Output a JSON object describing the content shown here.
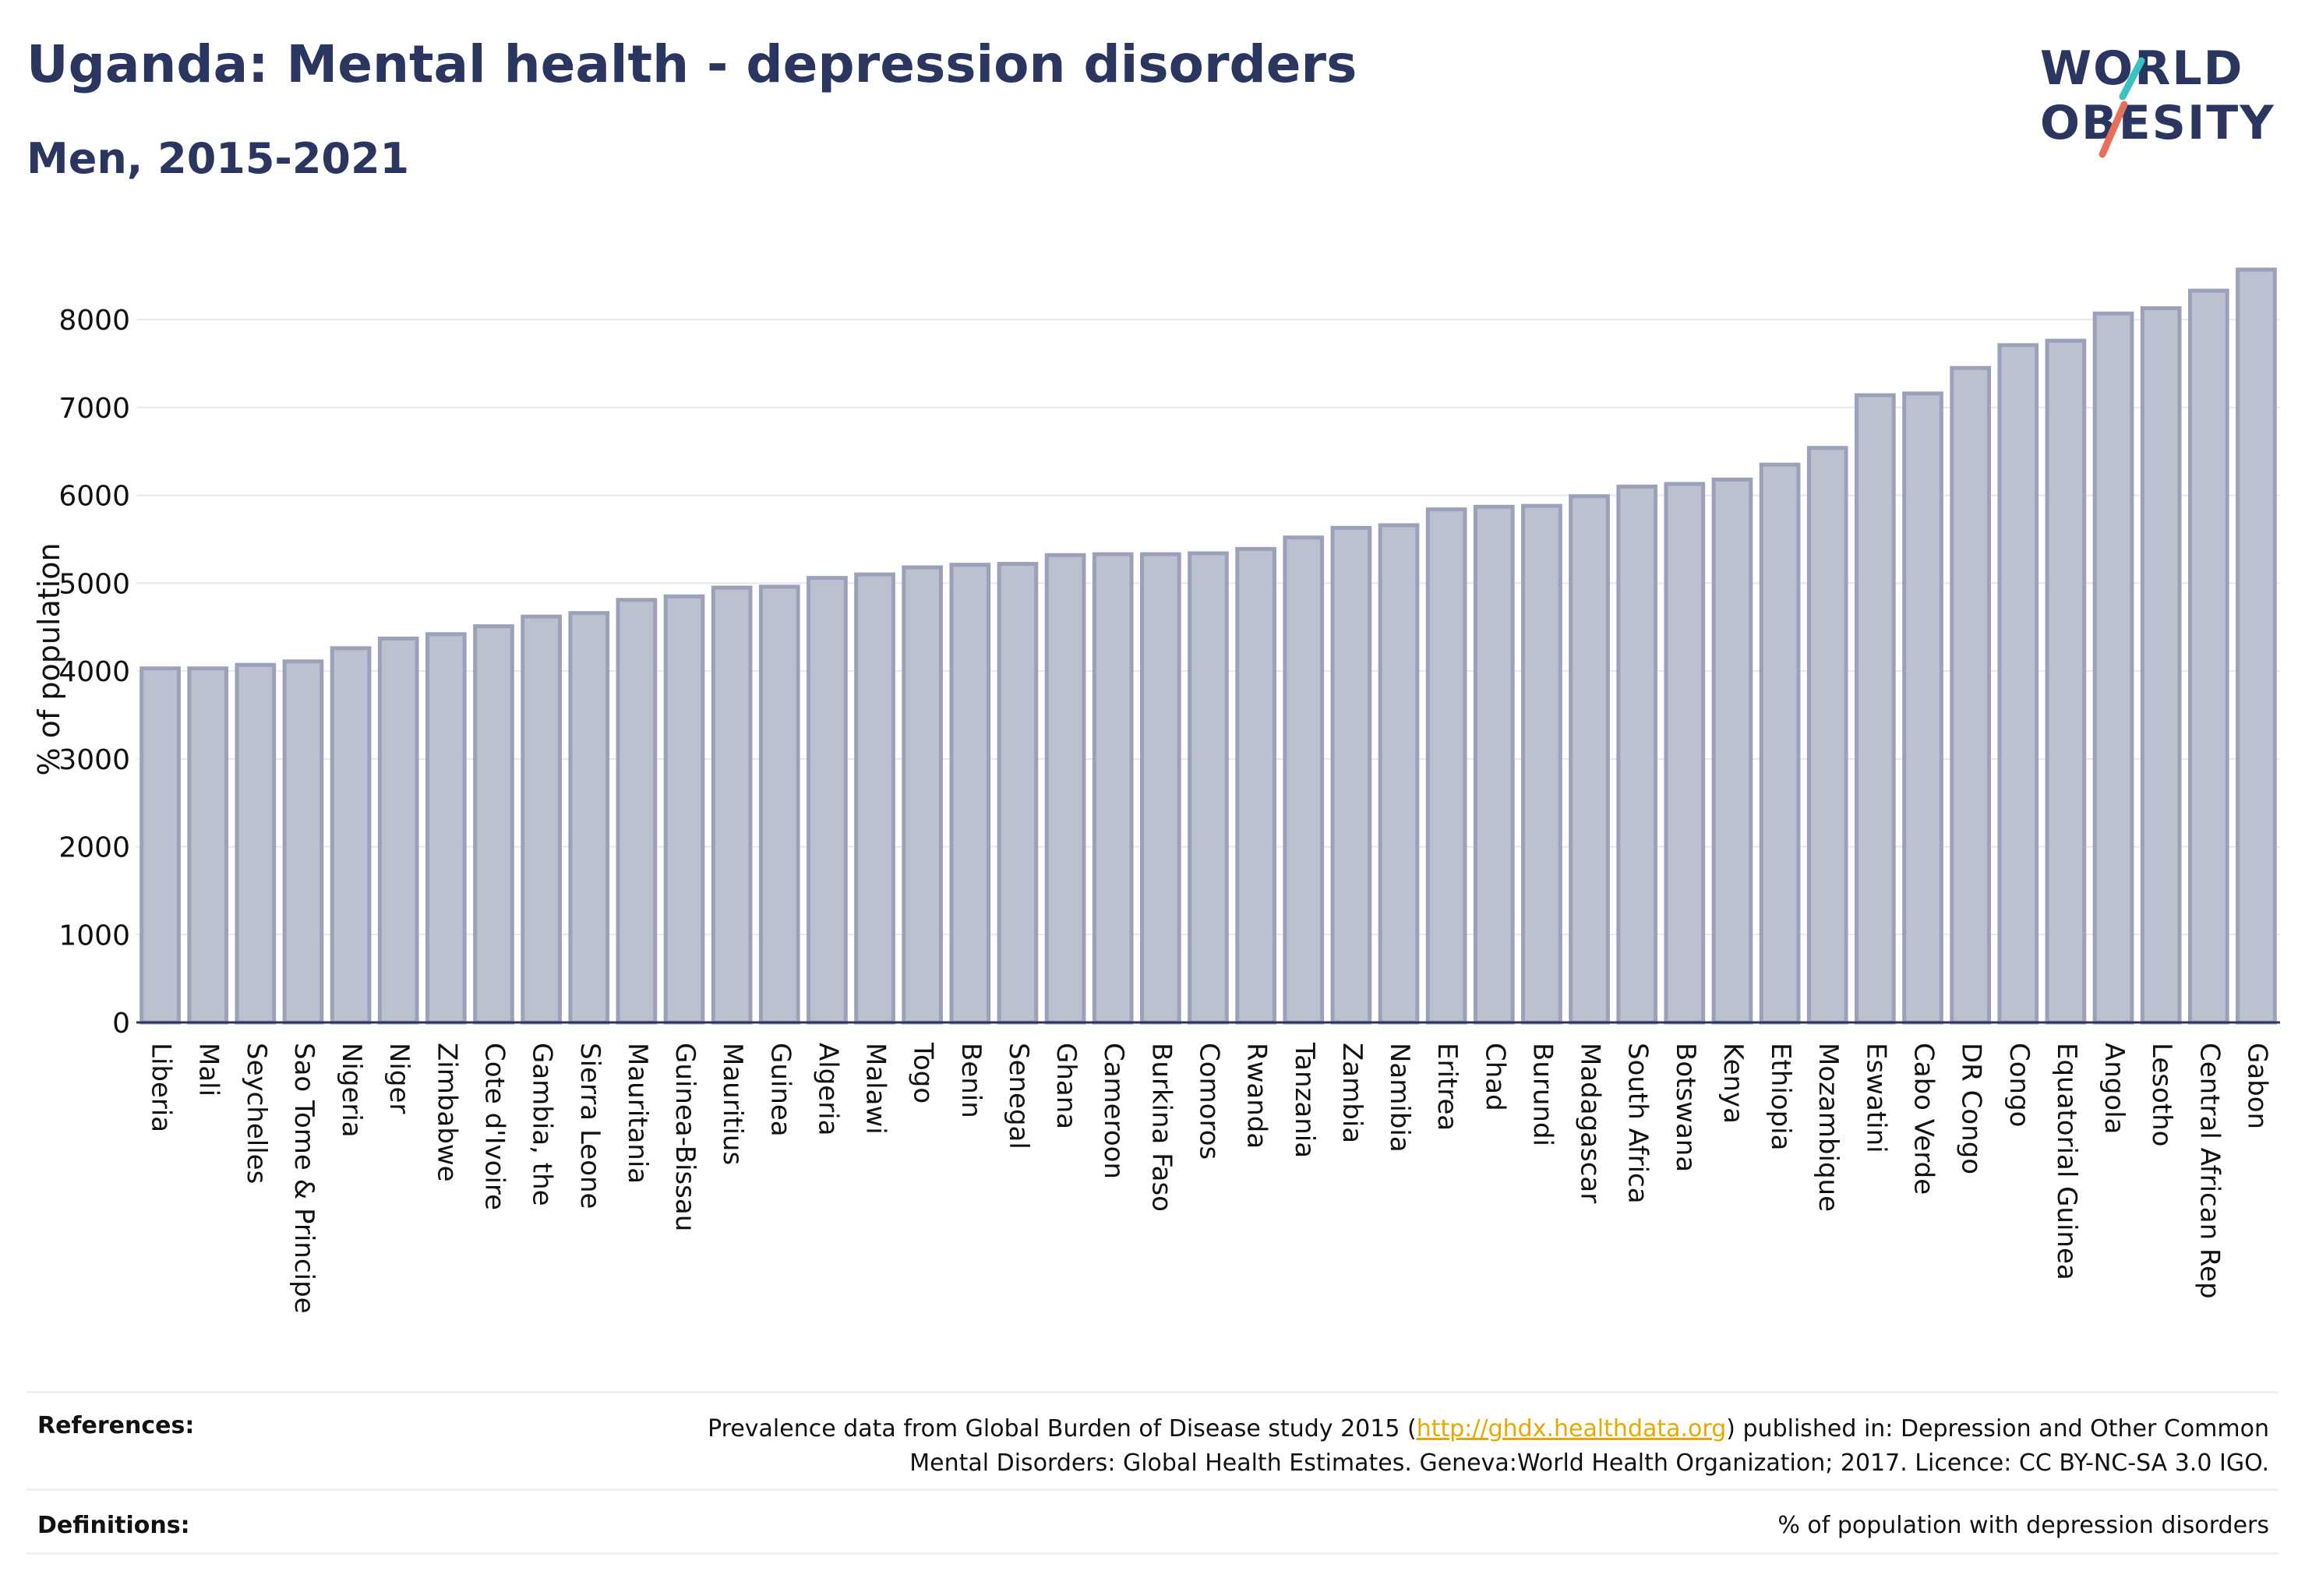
{
  "header": {
    "title": "Uganda: Mental health - depression disorders",
    "subtitle": "Men, 2015-2021"
  },
  "logo": {
    "line1": "WORLD",
    "line2": "OBESITY",
    "accent_teal": "#3cc0c0",
    "accent_coral": "#e8705a",
    "text_color": "#2a3560"
  },
  "footer": {
    "references_label": "References:",
    "references_text_before": "Prevalence data from Global Burden of Disease study 2015 (",
    "references_link": "http://ghdx.healthdata.org",
    "references_text_after": ") published in: Depression and Other Common",
    "references_text_line2": "Mental Disorders: Global Health Estimates. Geneva:World Health Organization; 2017. Licence: CC BY-NC-SA 3.0 IGO.",
    "definitions_label": "Definitions:",
    "definitions_text": "% of population with depression disorders"
  },
  "chart_data": {
    "type": "bar",
    "title": "Uganda: Mental health - depression disorders",
    "subtitle": "Men, 2015-2021",
    "ylabel": "% of population",
    "xlabel": "",
    "ylim": [
      0,
      8800
    ],
    "yticks": [
      0,
      1000,
      2000,
      3000,
      4000,
      5000,
      6000,
      7000,
      8000
    ],
    "grid": true,
    "bar_color": "#bcc1cf",
    "bar_edge_color": "#9aa1b8",
    "categories": [
      "Liberia",
      "Mali",
      "Seychelles",
      "Sao Tome & Principe",
      "Nigeria",
      "Niger",
      "Zimbabwe",
      "Cote d'Ivoire",
      "Gambia, the",
      "Sierra Leone",
      "Mauritania",
      "Guinea-Bissau",
      "Mauritius",
      "Guinea",
      "Algeria",
      "Malawi",
      "Togo",
      "Benin",
      "Senegal",
      "Ghana",
      "Cameroon",
      "Burkina Faso",
      "Comoros",
      "Rwanda",
      "Tanzania",
      "Zambia",
      "Namibia",
      "Eritrea",
      "Chad",
      "Burundi",
      "Madagascar",
      "South Africa",
      "Botswana",
      "Kenya",
      "Ethiopia",
      "Mozambique",
      "Eswatini",
      "Cabo Verde",
      "DR Congo",
      "Congo",
      "Equatorial Guinea",
      "Angola",
      "Lesotho",
      "Central African Rep",
      "Gabon"
    ],
    "values": [
      4030,
      4030,
      4070,
      4110,
      4260,
      4370,
      4420,
      4510,
      4620,
      4660,
      4810,
      4850,
      4950,
      4960,
      5060,
      5100,
      5180,
      5210,
      5220,
      5320,
      5330,
      5330,
      5340,
      5390,
      5520,
      5630,
      5660,
      5840,
      5870,
      5880,
      5990,
      6100,
      6130,
      6180,
      6350,
      6540,
      7140,
      7160,
      7450,
      7710,
      7760,
      8070,
      8130,
      8330,
      8570
    ]
  }
}
